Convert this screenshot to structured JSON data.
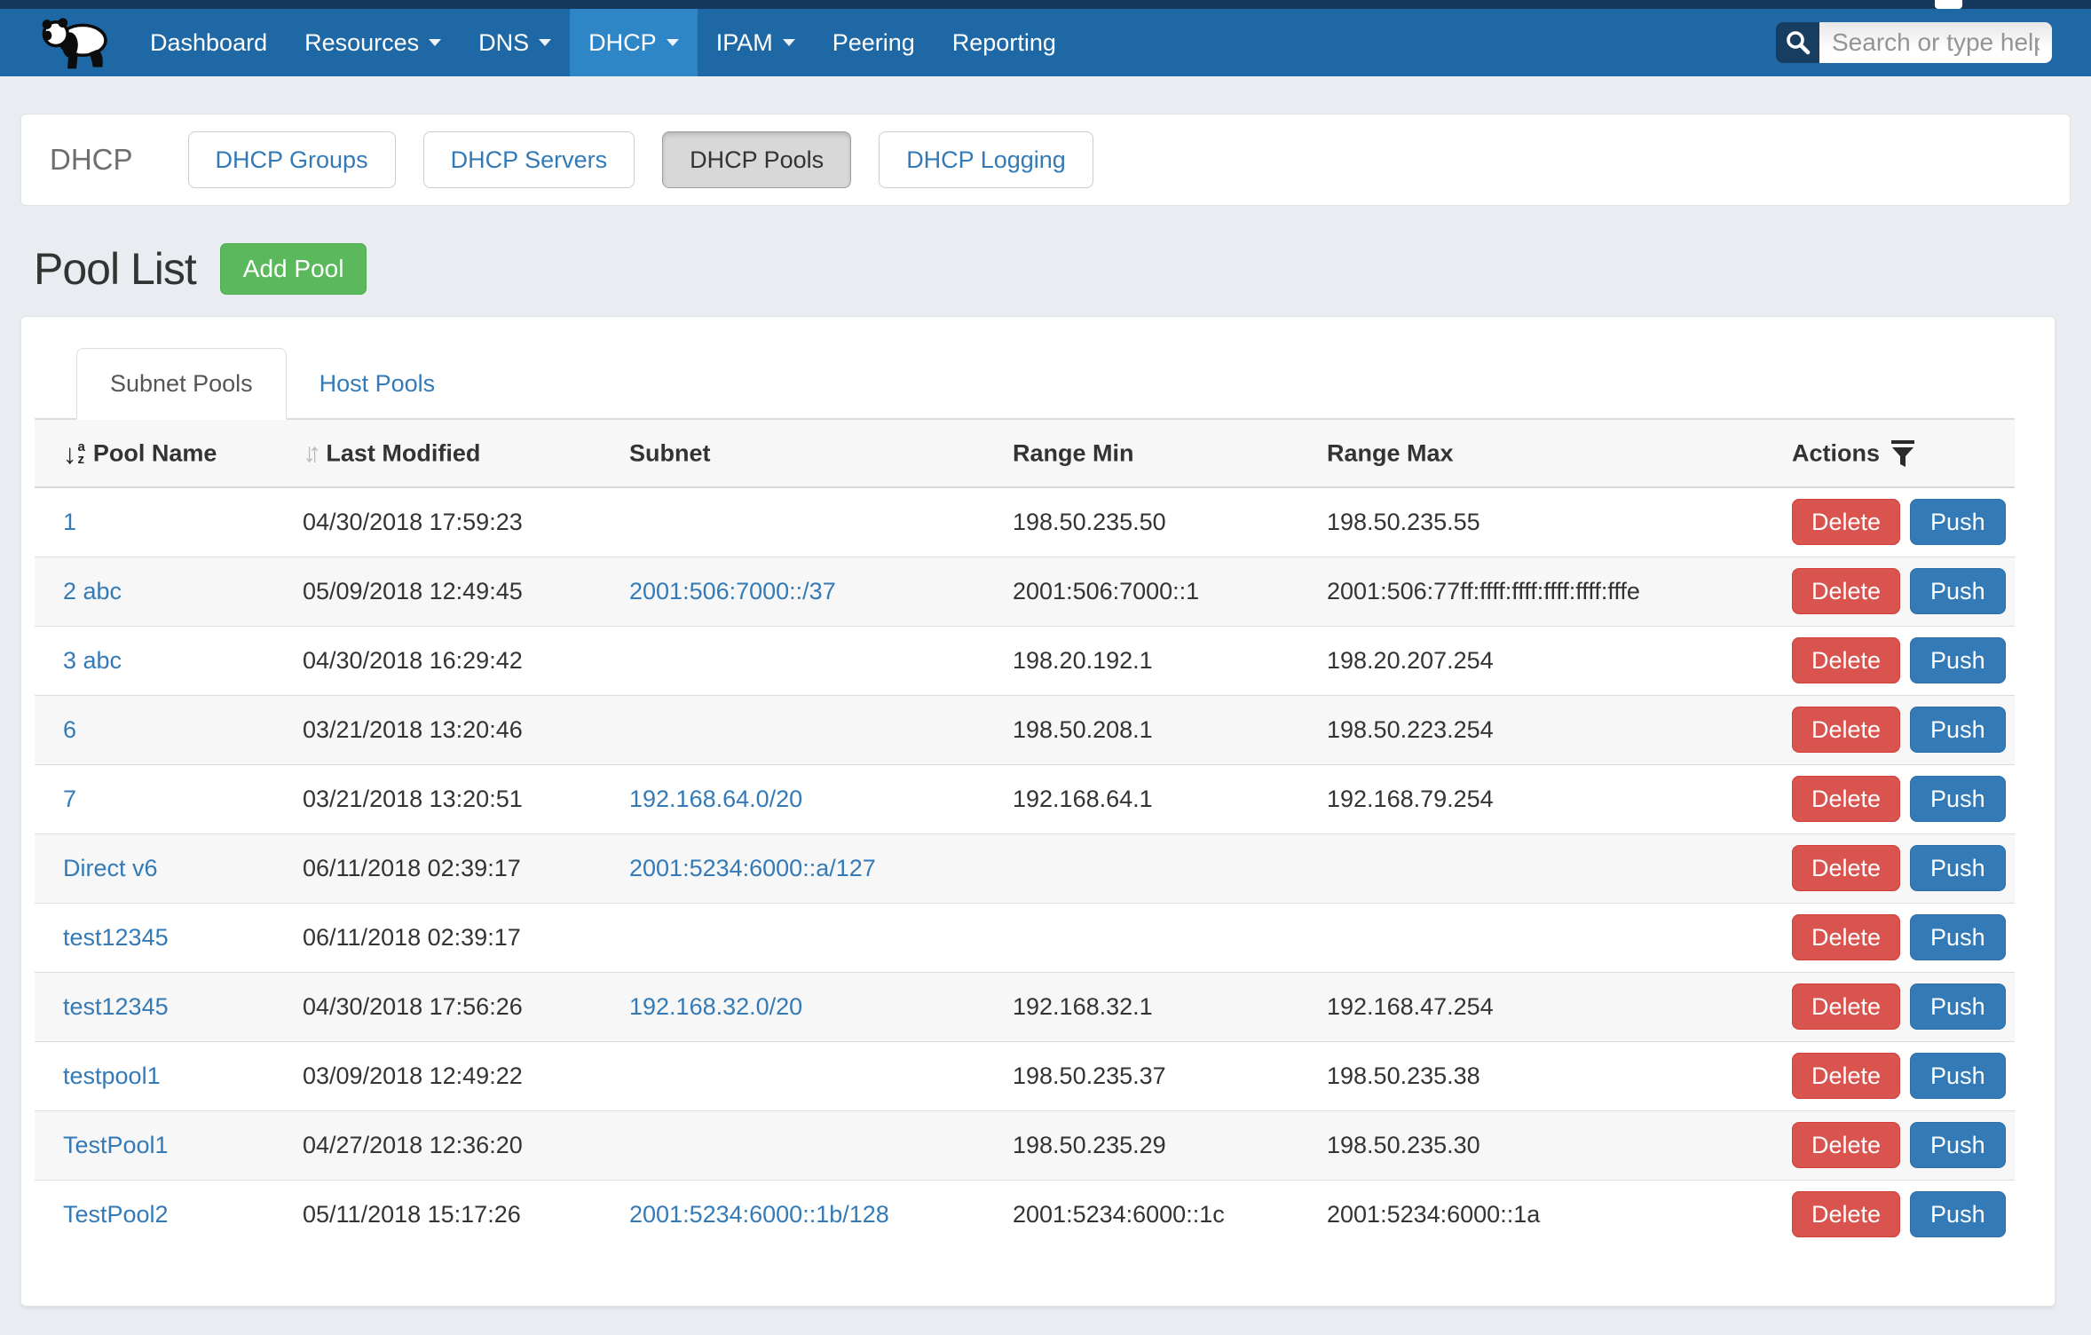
{
  "nav": {
    "items": [
      {
        "label": "Dashboard",
        "caret": false,
        "active": false
      },
      {
        "label": "Resources",
        "caret": true,
        "active": false
      },
      {
        "label": "DNS",
        "caret": true,
        "active": false
      },
      {
        "label": "DHCP",
        "caret": true,
        "active": true
      },
      {
        "label": "IPAM",
        "caret": true,
        "active": false
      },
      {
        "label": "Peering",
        "caret": false,
        "active": false
      },
      {
        "label": "Reporting",
        "caret": false,
        "active": false
      }
    ],
    "logo_icon": "panda-logo-icon",
    "search_icon": "search-icon",
    "search_placeholder": "Search or type help",
    "search_value": ""
  },
  "dhcp_header": {
    "title": "DHCP",
    "buttons": [
      {
        "label": "DHCP Groups",
        "active": false
      },
      {
        "label": "DHCP Servers",
        "active": false
      },
      {
        "label": "DHCP Pools",
        "active": true
      },
      {
        "label": "DHCP Logging",
        "active": false
      }
    ]
  },
  "pool_list": {
    "title": "Pool List",
    "add_button": "Add Pool",
    "tabs": [
      {
        "label": "Subnet Pools",
        "active": true
      },
      {
        "label": "Host Pools",
        "active": false
      }
    ]
  },
  "table": {
    "columns": [
      {
        "label": "Pool Name",
        "icon": "sort-alpha-down-icon",
        "sortable": true
      },
      {
        "label": "Last Modified",
        "icon": "sort-up-down-icon",
        "sortable": true
      },
      {
        "label": "Subnet",
        "icon": "",
        "sortable": false
      },
      {
        "label": "Range Min",
        "icon": "",
        "sortable": false
      },
      {
        "label": "Range Max",
        "icon": "",
        "sortable": false
      },
      {
        "label": "Actions",
        "icon": "filter-icon",
        "sortable": false
      }
    ],
    "action_labels": [
      "Delete",
      "Push"
    ],
    "rows": [
      {
        "name": "1",
        "modified": "04/30/2018 17:59:23",
        "subnet": "",
        "range_min": "198.50.235.50",
        "range_max": "198.50.235.55"
      },
      {
        "name": "2 abc",
        "modified": "05/09/2018 12:49:45",
        "subnet": "2001:506:7000::/37",
        "range_min": "2001:506:7000::1",
        "range_max": "2001:506:77ff:ffff:ffff:ffff:ffff:fffe"
      },
      {
        "name": "3 abc",
        "modified": "04/30/2018 16:29:42",
        "subnet": "",
        "range_min": "198.20.192.1",
        "range_max": "198.20.207.254"
      },
      {
        "name": "6",
        "modified": "03/21/2018 13:20:46",
        "subnet": "",
        "range_min": "198.50.208.1",
        "range_max": "198.50.223.254"
      },
      {
        "name": "7",
        "modified": "03/21/2018 13:20:51",
        "subnet": "192.168.64.0/20",
        "range_min": "192.168.64.1",
        "range_max": "192.168.79.254"
      },
      {
        "name": "Direct v6",
        "modified": "06/11/2018 02:39:17",
        "subnet": "2001:5234:6000::a/127",
        "range_min": "",
        "range_max": ""
      },
      {
        "name": "test12345",
        "modified": "06/11/2018 02:39:17",
        "subnet": "",
        "range_min": "",
        "range_max": ""
      },
      {
        "name": "test12345",
        "modified": "04/30/2018 17:56:26",
        "subnet": "192.168.32.0/20",
        "range_min": "192.168.32.1",
        "range_max": "192.168.47.254"
      },
      {
        "name": "testpool1",
        "modified": "03/09/2018 12:49:22",
        "subnet": "",
        "range_min": "198.50.235.37",
        "range_max": "198.50.235.38"
      },
      {
        "name": "TestPool1",
        "modified": "04/27/2018 12:36:20",
        "subnet": "",
        "range_min": "198.50.235.29",
        "range_max": "198.50.235.30"
      },
      {
        "name": "TestPool2",
        "modified": "05/11/2018 15:17:26",
        "subnet": "2001:5234:6000::1b/128",
        "range_min": "2001:5234:6000::1c",
        "range_max": "2001:5234:6000::1a"
      }
    ]
  },
  "colors": {
    "top_strip": "#15395c",
    "navbar": "#1f68a6",
    "navbar_active": "#2e86c6",
    "link": "#337ab7",
    "add_button": "#5cb85c",
    "delete_button": "#d9534f",
    "push_button": "#337ab7",
    "page_background": "#e9edf1",
    "stripe": "#f7f7f7"
  }
}
